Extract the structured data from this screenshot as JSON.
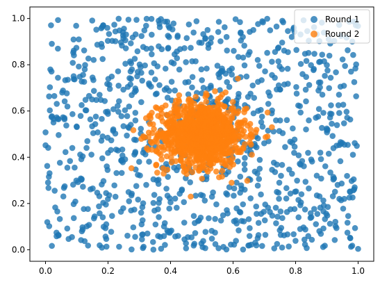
{
  "chart_data": {
    "type": "scatter",
    "xlim": [
      -0.05,
      1.05
    ],
    "ylim": [
      -0.05,
      1.05
    ],
    "xticks": [
      0.0,
      0.2,
      0.4,
      0.6,
      0.8,
      1.0
    ],
    "yticks": [
      0.0,
      0.2,
      0.4,
      0.6,
      0.8,
      1.0
    ],
    "xtick_labels": [
      "0.0",
      "0.2",
      "0.4",
      "0.6",
      "0.8",
      "1.0"
    ],
    "ytick_labels": [
      "0.0",
      "0.2",
      "0.4",
      "0.6",
      "0.8",
      "1.0"
    ],
    "grid": false,
    "legend_position": "top-right",
    "series": [
      {
        "name": "Round 1",
        "color": "#1f77b4",
        "distribution": "uniform over [0,1] x [0,1]",
        "count": 1000,
        "x_range": [
          0.0,
          1.0
        ],
        "y_range": [
          0.0,
          1.0
        ]
      },
      {
        "name": "Round 2",
        "color": "#ff7f0e",
        "distribution": "dense cluster",
        "count": 1000,
        "center": [
          0.5,
          0.5
        ],
        "spread_sd": 0.07,
        "x_range": [
          0.0,
          1.0
        ],
        "y_range": [
          0.0,
          1.0
        ]
      }
    ]
  }
}
